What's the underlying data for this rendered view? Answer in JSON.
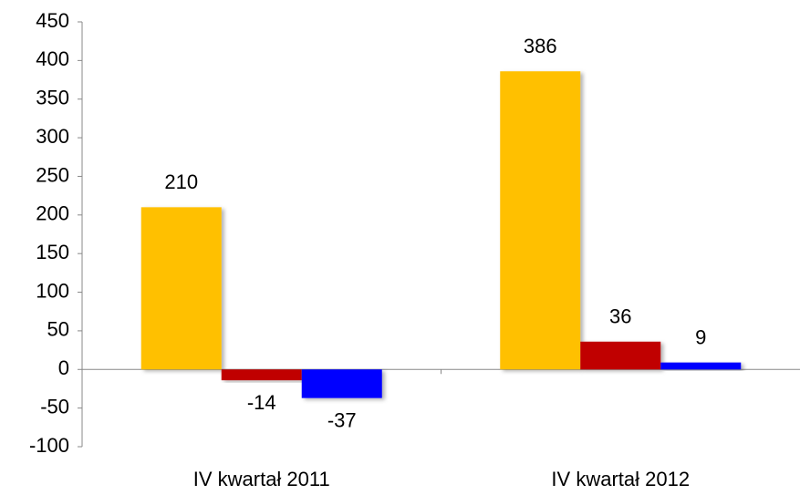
{
  "chart_data": {
    "type": "bar",
    "categories": [
      "IV kwartał 2011",
      "IV kwartał 2012"
    ],
    "series": [
      {
        "color": "#ffc000",
        "values": [
          210,
          386
        ]
      },
      {
        "color": "#c00000",
        "values": [
          -14,
          36
        ]
      },
      {
        "color": "#0000ff",
        "values": [
          -37,
          9
        ]
      }
    ],
    "ylim": [
      -100,
      450
    ],
    "yticks": [
      -100,
      -50,
      0,
      50,
      100,
      150,
      200,
      250,
      300,
      350,
      400,
      450
    ],
    "grid": false
  }
}
